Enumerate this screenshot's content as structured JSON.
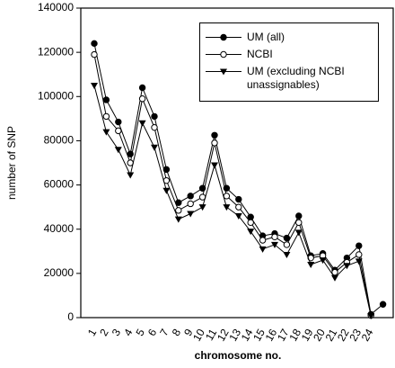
{
  "chart_data": {
    "type": "line",
    "ylabel": "number of SNP",
    "xlabel": "chromosome no.",
    "categories": [
      "1",
      "2",
      "3",
      "4",
      "5",
      "6",
      "7",
      "8",
      "9",
      "10",
      "11",
      "12",
      "13",
      "14",
      "15",
      "16",
      "17",
      "18",
      "19",
      "20",
      "21",
      "22",
      "23",
      "24",
      null
    ],
    "series": [
      {
        "name": "UM (all)",
        "color": "#000000",
        "marker": "circle-filled",
        "values": [
          124000,
          98500,
          88500,
          74000,
          104000,
          91000,
          67000,
          52000,
          55000,
          58500,
          82500,
          58500,
          53500,
          45500,
          37000,
          38000,
          36000,
          46000,
          28000,
          29000,
          21500,
          27000,
          32500,
          1500,
          6000
        ]
      },
      {
        "name": "NCBI",
        "color": "#000000",
        "marker": "circle-open",
        "values": [
          119000,
          91000,
          84500,
          70000,
          99000,
          86000,
          62000,
          48500,
          51500,
          54500,
          79000,
          55000,
          50000,
          43000,
          35000,
          36500,
          33000,
          43000,
          27000,
          28000,
          20500,
          25000,
          28500,
          1000,
          null
        ]
      },
      {
        "name": "UM (excluding NCBI unassignables)",
        "color": "#000000",
        "marker": "triangle-down",
        "values": [
          105000,
          84000,
          76000,
          64500,
          88000,
          77000,
          57500,
          44500,
          47000,
          50000,
          69000,
          50000,
          46000,
          39000,
          31000,
          33000,
          28500,
          38500,
          24000,
          26000,
          18000,
          23500,
          25500,
          800,
          null
        ]
      }
    ],
    "ylim": [
      0,
      140000
    ],
    "yticks": [
      0,
      20000,
      40000,
      60000,
      80000,
      100000,
      120000,
      140000
    ],
    "legend": "top-right"
  }
}
